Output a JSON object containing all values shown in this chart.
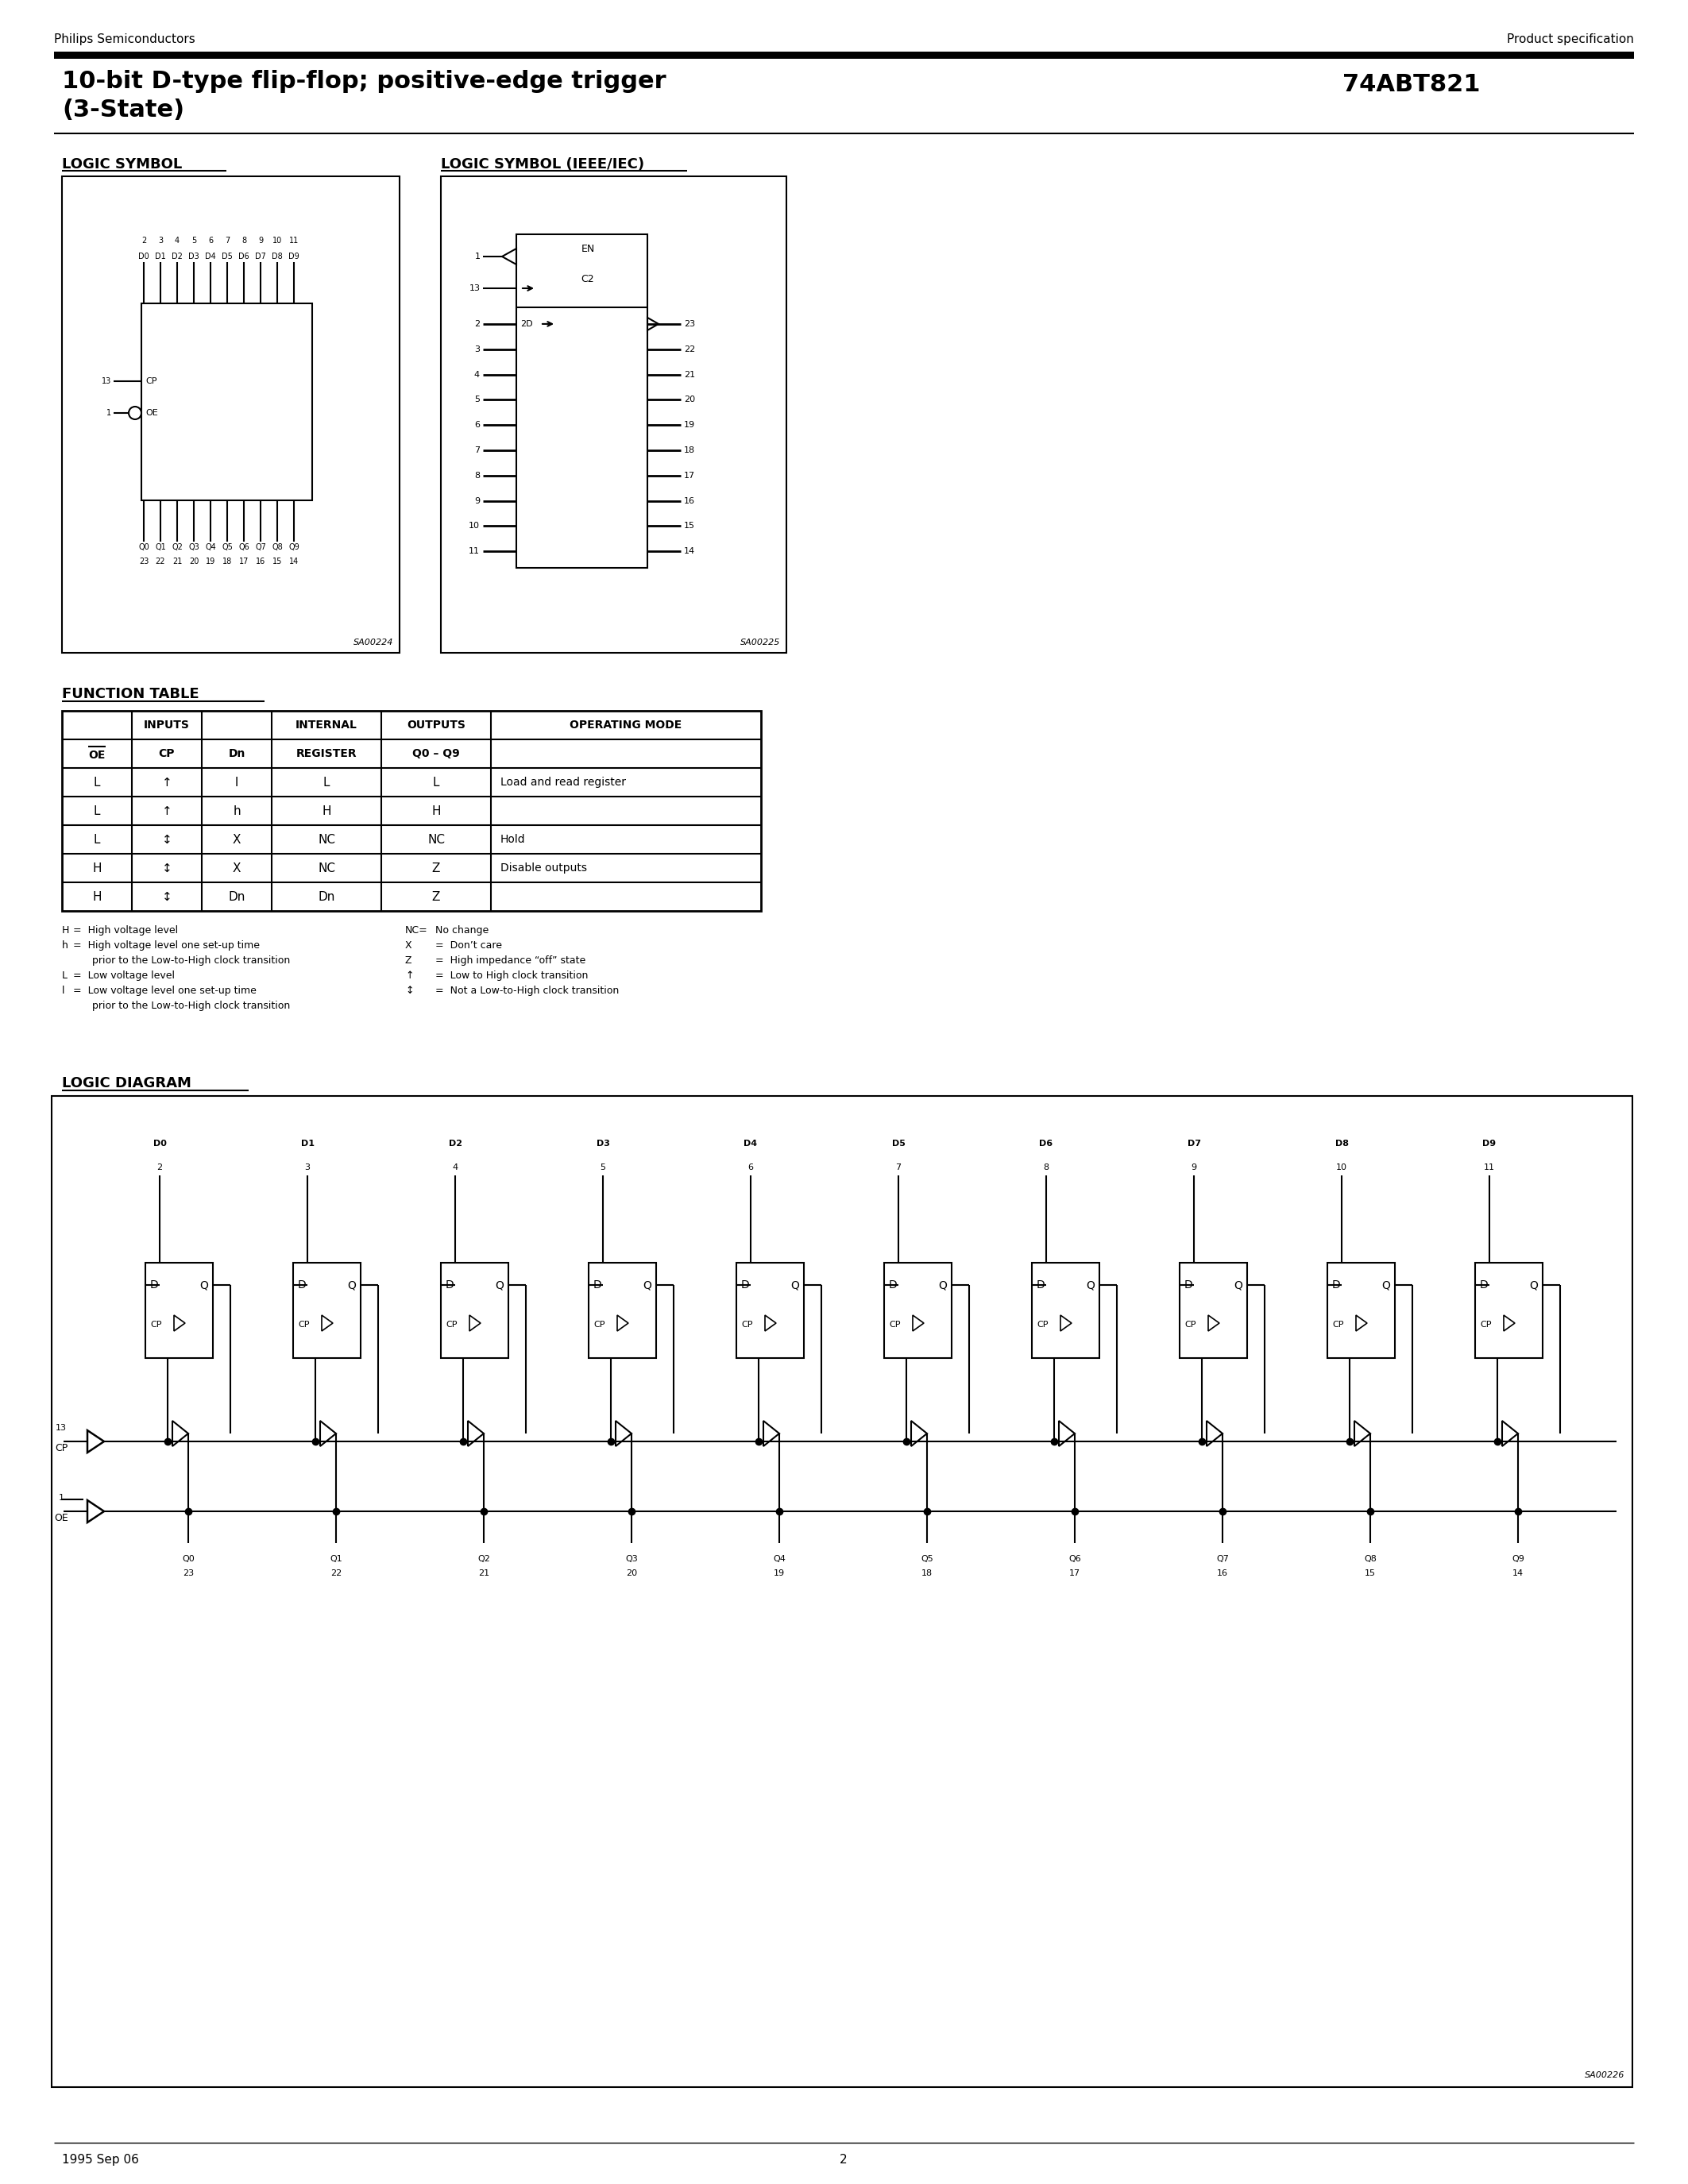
{
  "page_title_line1": "10-bit D-type flip-flop; positive-edge trigger",
  "page_title_line2": "(3-State)",
  "part_number": "74ABT821",
  "company": "Philips Semiconductors",
  "doc_type": "Product specification",
  "page_number": "2",
  "date": "1995 Sep 06",
  "section1_title": "LOGIC SYMBOL",
  "section2_title": "LOGIC SYMBOL (IEEE/IEC)",
  "section3_title": "FUNCTION TABLE",
  "section4_title": "LOGIC DIAGRAM",
  "sa_code1": "SA00224",
  "sa_code2": "SA00225",
  "sa_code3": "SA00226",
  "up_arrow": "↑",
  "double_arrow": "↕",
  "en_dash": "–",
  "right_curly_open": "“",
  "right_curly_close": "”",
  "right_apos": "’"
}
